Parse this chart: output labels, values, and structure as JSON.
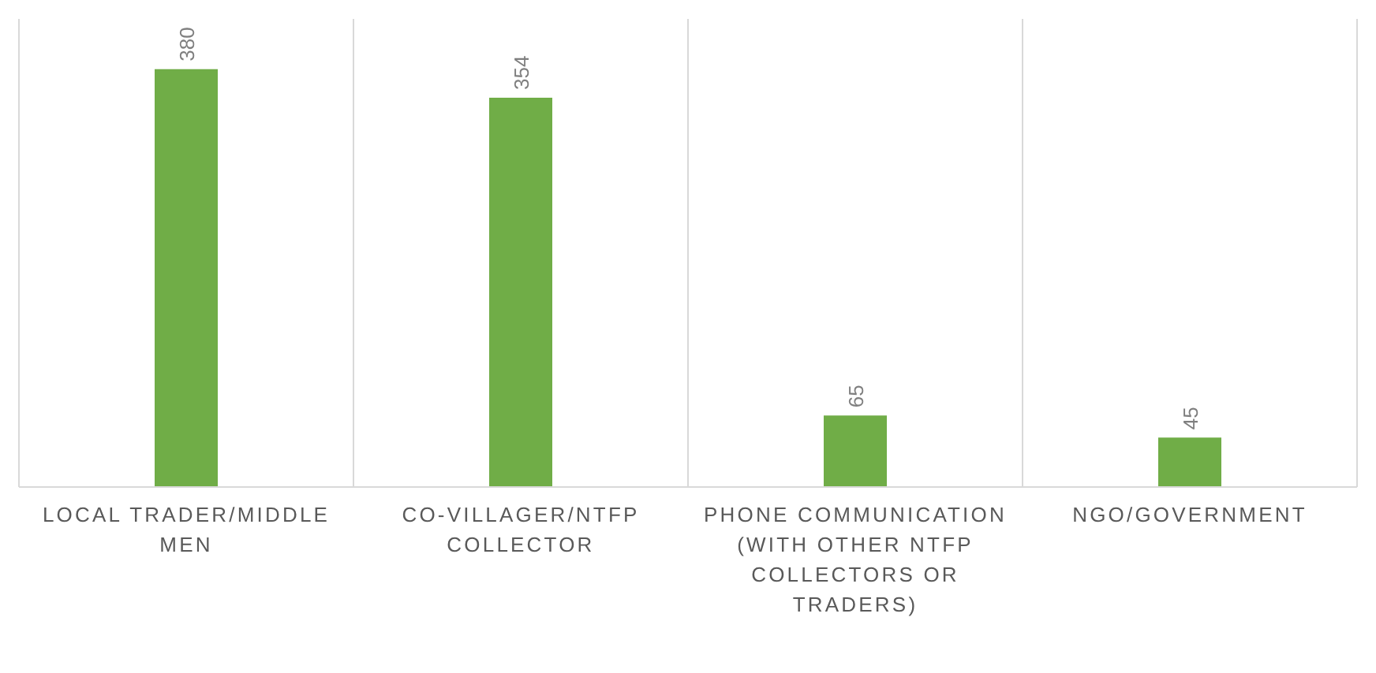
{
  "chart_data": {
    "type": "bar",
    "categories": [
      "LOCAL TRADER/MIDDLE MEN",
      "CO-VILLAGER/NTFP COLLECTOR",
      "PHONE COMMUNICATION (WITH OTHER NTFP COLLECTORS OR TRADERS)",
      "NGO/GOVERNMENT"
    ],
    "values": [
      380,
      354,
      65,
      45
    ],
    "color": "#70ad47",
    "data_labels": true,
    "grid": "x"
  }
}
